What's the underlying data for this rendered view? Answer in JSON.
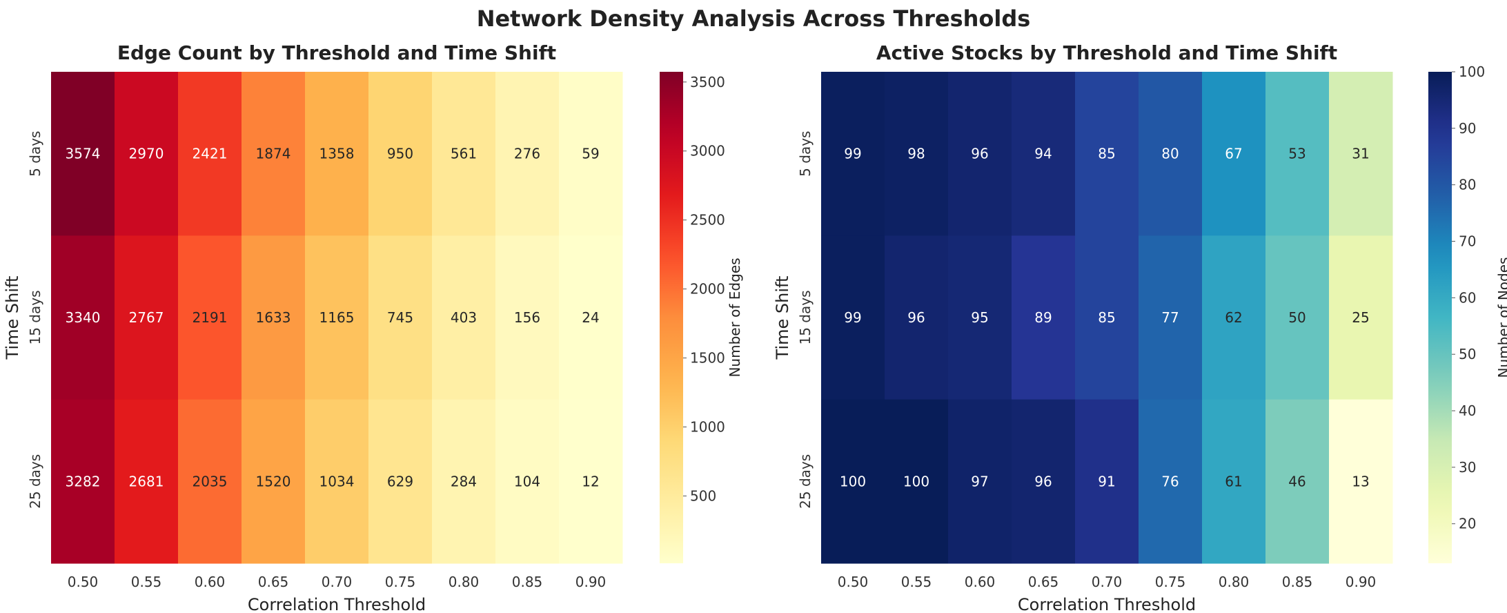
{
  "suptitle": "Network Density Analysis Across Thresholds",
  "chart_data": [
    {
      "type": "heatmap",
      "title": "Edge Count by Threshold and Time Shift",
      "xlabel": "Correlation Threshold",
      "ylabel": "Time Shift",
      "x": [
        "0.50",
        "0.55",
        "0.60",
        "0.65",
        "0.70",
        "0.75",
        "0.80",
        "0.85",
        "0.90"
      ],
      "y": [
        "5 days",
        "15 days",
        "25 days"
      ],
      "values": [
        [
          3574,
          2970,
          2421,
          1874,
          1358,
          950,
          561,
          276,
          59
        ],
        [
          3340,
          2767,
          2191,
          1633,
          1165,
          745,
          403,
          156,
          24
        ],
        [
          3282,
          2681,
          2035,
          1520,
          1034,
          629,
          284,
          104,
          12
        ]
      ],
      "colormap": "YlOrRd",
      "colorbar": {
        "label": "Number of Edges",
        "range": [
          12,
          3574
        ],
        "ticks": [
          500,
          1000,
          1500,
          2000,
          2500,
          3000,
          3500
        ]
      }
    },
    {
      "type": "heatmap",
      "title": "Active Stocks by Threshold and Time Shift",
      "xlabel": "Correlation Threshold",
      "ylabel": "Time Shift",
      "x": [
        "0.50",
        "0.55",
        "0.60",
        "0.65",
        "0.70",
        "0.75",
        "0.80",
        "0.85",
        "0.90"
      ],
      "y": [
        "5 days",
        "15 days",
        "25 days"
      ],
      "values": [
        [
          99,
          98,
          96,
          94,
          85,
          80,
          67,
          53,
          31
        ],
        [
          99,
          96,
          95,
          89,
          85,
          77,
          62,
          50,
          25
        ],
        [
          100,
          100,
          97,
          96,
          91,
          76,
          61,
          46,
          13
        ]
      ],
      "colormap": "YlGnBu",
      "colorbar": {
        "label": "Number of Nodes",
        "range": [
          13,
          100
        ],
        "ticks": [
          20,
          30,
          40,
          50,
          60,
          70,
          80,
          90,
          100
        ]
      }
    }
  ]
}
